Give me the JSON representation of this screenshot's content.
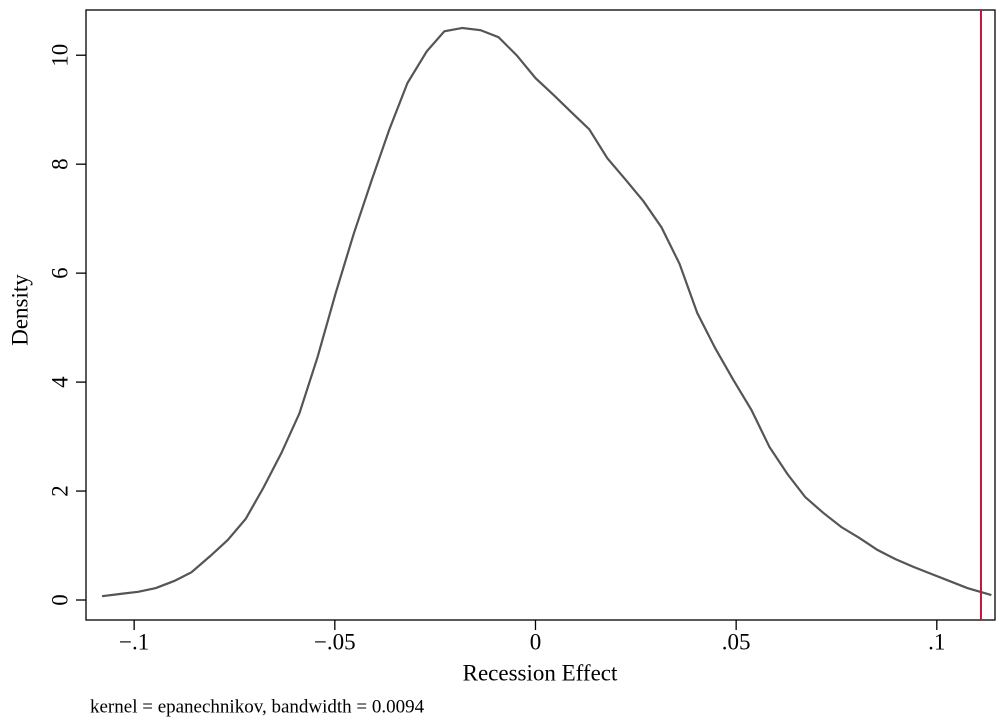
{
  "chart_data": {
    "type": "line",
    "x_label": "Recession Effect",
    "y_label": "Density",
    "note": "kernel = epanechnikov, bandwidth = 0.0094",
    "color": "#555555",
    "x": [
      -0.108,
      -0.1036,
      -0.099,
      -0.0946,
      -0.09,
      -0.0857,
      -0.081,
      -0.0767,
      -0.0722,
      -0.0678,
      -0.0633,
      -0.0588,
      -0.0543,
      -0.0498,
      -0.0453,
      -0.0408,
      -0.0364,
      -0.0319,
      -0.0271,
      -0.0227,
      -0.0182,
      -0.0137,
      -0.0092,
      -0.0047,
      0.0,
      0.0045,
      0.009,
      0.0134,
      0.0179,
      0.0224,
      0.0269,
      0.0314,
      0.0359,
      0.0403,
      0.0448,
      0.0493,
      0.0538,
      0.0583,
      0.0628,
      0.0672,
      0.0717,
      0.0762,
      0.0807,
      0.0852,
      0.0897,
      0.0941,
      0.0986,
      0.1031,
      0.1076,
      0.1136
    ],
    "values": [
      0.07,
      0.11,
      0.15,
      0.22,
      0.35,
      0.51,
      0.81,
      1.1,
      1.49,
      2.06,
      2.7,
      3.43,
      4.46,
      5.63,
      6.72,
      7.71,
      8.64,
      9.49,
      10.07,
      10.44,
      10.5,
      10.46,
      10.33,
      10.0,
      9.58,
      9.27,
      8.95,
      8.64,
      8.11,
      7.72,
      7.32,
      6.84,
      6.17,
      5.27,
      4.62,
      4.04,
      3.49,
      2.81,
      2.31,
      1.89,
      1.6,
      1.34,
      1.14,
      0.92,
      0.75,
      0.61,
      0.48,
      0.35,
      0.22,
      0.09
    ],
    "vline": {
      "x": 0.111,
      "color": "#c0143c"
    },
    "xlim": [
      -0.112,
      0.1145
    ],
    "ylim": [
      -0.367,
      10.83
    ],
    "xticks": [
      {
        "value": -0.1,
        "label": "−.1"
      },
      {
        "value": -0.05,
        "label": "−.05"
      },
      0,
      {
        "value": 0.05,
        "label": ".05"
      },
      {
        "value": 0.1,
        "label": ".1"
      }
    ],
    "yticks": [
      0,
      2,
      4,
      6,
      8,
      10
    ]
  }
}
